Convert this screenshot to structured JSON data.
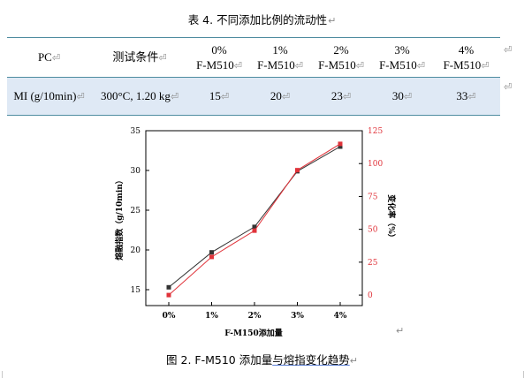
{
  "table": {
    "caption": "表 4. 不同添加比例的流动性",
    "headers": [
      {
        "line1": "PC",
        "line2": ""
      },
      {
        "line1": "测试条件",
        "line2": ""
      },
      {
        "line1": "0%",
        "line2": "F-M510"
      },
      {
        "line1": "1%",
        "line2": "F-M510"
      },
      {
        "line1": "2%",
        "line2": "F-M510"
      },
      {
        "line1": "3%",
        "line2": "F-M510"
      },
      {
        "line1": "4%",
        "line2": "F-M510"
      }
    ],
    "row": [
      "MI (g/10min)",
      "300°C, 1.20 kg",
      "15",
      "20",
      "23",
      "30",
      "33"
    ]
  },
  "marks": {
    "cell_end": "⏎",
    "para_end": "↵"
  },
  "chart_data": {
    "type": "line",
    "categories": [
      "0%",
      "1%",
      "2%",
      "3%",
      "4%"
    ],
    "xlabel": "F-M150添加量",
    "ylabel_left": "熔融指数（g/10min）",
    "ylabel_right": "变化率（%）",
    "ylim_left": [
      13,
      35
    ],
    "yticks_left": [
      15,
      20,
      25,
      30,
      35
    ],
    "ylim_right": [
      -8,
      125
    ],
    "yticks_right": [
      0,
      25,
      50,
      75,
      100,
      125
    ],
    "series": [
      {
        "axis": "left",
        "color": "#333333",
        "values": [
          15.3,
          19.7,
          22.9,
          29.9,
          33.0
        ]
      },
      {
        "axis": "right",
        "color": "#e0333a",
        "values": [
          0,
          29,
          49,
          95,
          115
        ]
      }
    ],
    "grid": false
  },
  "figure": {
    "caption_pre": "图 2. F-M510 添加量",
    "caption_mid": "与熔指",
    "caption_post": "变化趋势"
  }
}
